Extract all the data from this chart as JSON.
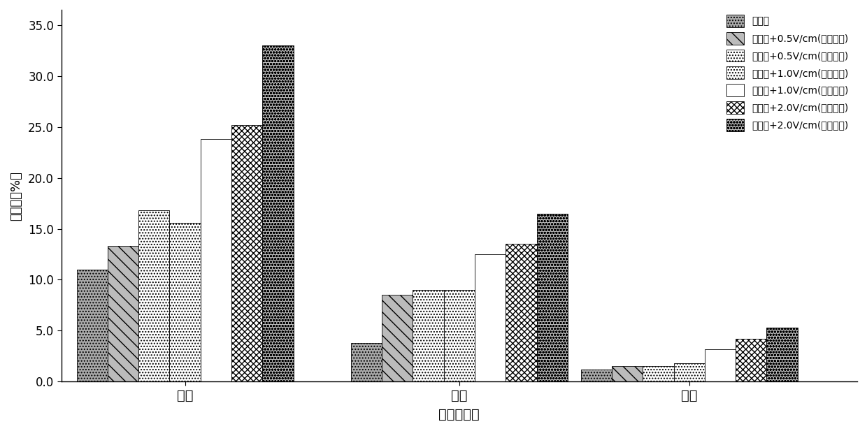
{
  "categories": [
    "烷烃",
    "芳烃",
    "胶质"
  ],
  "series": [
    {
      "label": "微生物",
      "values": [
        11.0,
        3.8,
        1.2
      ],
      "hatch": "....",
      "fc": "#aaaaaa"
    },
    {
      "label": "微生物+0.5V/cm(单向电场)",
      "values": [
        13.3,
        8.5,
        1.5
      ],
      "hatch": "\\\\",
      "fc": "#cccccc"
    },
    {
      "label": "微生物+0.5V/cm(切换电场)",
      "values": [
        16.8,
        9.0,
        1.5
      ],
      "hatch": "....",
      "fc": "#ffffff"
    },
    {
      "label": "微生物+1.0V/cm(单向电场)",
      "values": [
        15.6,
        9.0,
        1.8
      ],
      "hatch": "....",
      "fc": "#ffffff"
    },
    {
      "label": "微生物+1.0V/cm(切换电场)",
      "values": [
        23.8,
        12.5,
        3.2
      ],
      "hatch": "NNNN",
      "fc": "#ffffff"
    },
    {
      "label": "微生物+2.0V/cm(单向电场)",
      "values": [
        25.2,
        13.5,
        4.2
      ],
      "hatch": "xxxx",
      "fc": "#ffffff"
    },
    {
      "label": "微生物+2.0V/cm(切换电场)",
      "values": [
        33.0,
        16.5,
        5.3
      ],
      "hatch": "oooo",
      "fc": "#cccccc"
    }
  ],
  "ylabel": "去除率（%）",
  "xlabel": "石油烃组分",
  "ylim_max": 36.5,
  "ytick_vals": [
    0.0,
    5.0,
    10.0,
    15.0,
    20.0,
    25.0,
    30.0,
    35.0
  ],
  "group_centers": [
    0.42,
    1.35,
    2.13
  ],
  "bar_width": 0.105,
  "xlim": [
    0.0,
    2.7
  ]
}
